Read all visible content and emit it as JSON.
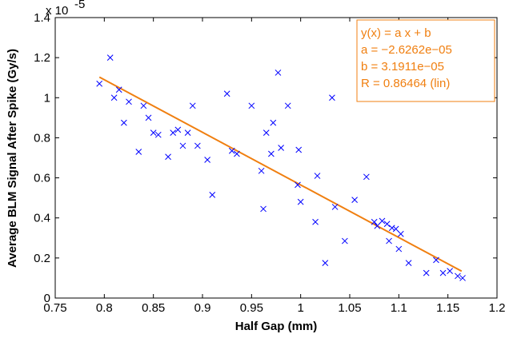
{
  "chart_data": {
    "type": "scatter",
    "xlabel": "Half Gap (mm)",
    "ylabel": "Average BLM Signal After Spike (Gy/s)",
    "y_exponent_label": "x 10",
    "y_exponent_power": "-5",
    "xlim": [
      0.75,
      1.2
    ],
    "ylim": [
      0,
      1.4
    ],
    "x_ticks": [
      0.75,
      0.8,
      0.85,
      0.9,
      0.95,
      1,
      1.05,
      1.1,
      1.15,
      1.2
    ],
    "x_tick_labels": [
      "0.75",
      "0.8",
      "0.85",
      "0.9",
      "0.95",
      "1",
      "1.05",
      "1.1",
      "1.15",
      "1.2"
    ],
    "y_ticks": [
      0,
      0.2,
      0.4,
      0.6,
      0.8,
      1,
      1.2,
      1.4
    ],
    "y_tick_labels": [
      "0",
      "0.2",
      "0.4",
      "0.6",
      "0.8",
      "1",
      "1.2",
      "1.4"
    ],
    "grid": false,
    "colors": {
      "points": "#0000ff",
      "fit_line": "#f07f10",
      "fit_box": "#f07f10"
    },
    "series": [
      {
        "marker": "x",
        "points": [
          [
            0.795,
            1.07
          ],
          [
            0.806,
            1.2
          ],
          [
            0.81,
            1.0
          ],
          [
            0.815,
            1.04
          ],
          [
            0.82,
            0.875
          ],
          [
            0.825,
            0.98
          ],
          [
            0.835,
            0.73
          ],
          [
            0.84,
            0.96
          ],
          [
            0.845,
            0.9
          ],
          [
            0.85,
            0.825
          ],
          [
            0.855,
            0.815
          ],
          [
            0.865,
            0.705
          ],
          [
            0.87,
            0.825
          ],
          [
            0.875,
            0.84
          ],
          [
            0.88,
            0.76
          ],
          [
            0.885,
            0.825
          ],
          [
            0.89,
            0.96
          ],
          [
            0.895,
            0.76
          ],
          [
            0.905,
            0.69
          ],
          [
            0.91,
            0.515
          ],
          [
            0.925,
            1.02
          ],
          [
            0.93,
            0.735
          ],
          [
            0.935,
            0.72
          ],
          [
            0.95,
            0.96
          ],
          [
            0.96,
            0.635
          ],
          [
            0.962,
            0.445
          ],
          [
            0.965,
            0.825
          ],
          [
            0.97,
            0.72
          ],
          [
            0.972,
            0.875
          ],
          [
            0.977,
            1.125
          ],
          [
            0.98,
            0.75
          ],
          [
            0.987,
            0.96
          ],
          [
            0.997,
            0.565
          ],
          [
            0.998,
            0.74
          ],
          [
            1.0,
            0.48
          ],
          [
            1.015,
            0.38
          ],
          [
            1.017,
            0.61
          ],
          [
            1.025,
            0.175
          ],
          [
            1.032,
            1.0
          ],
          [
            1.035,
            0.455
          ],
          [
            1.045,
            0.285
          ],
          [
            1.055,
            0.49
          ],
          [
            1.067,
            0.605
          ],
          [
            1.075,
            0.38
          ],
          [
            1.078,
            0.36
          ],
          [
            1.083,
            0.385
          ],
          [
            1.088,
            0.37
          ],
          [
            1.09,
            0.285
          ],
          [
            1.093,
            0.35
          ],
          [
            1.097,
            0.345
          ],
          [
            1.1,
            0.245
          ],
          [
            1.102,
            0.32
          ],
          [
            1.11,
            0.175
          ],
          [
            1.128,
            0.125
          ],
          [
            1.138,
            0.19
          ],
          [
            1.145,
            0.125
          ],
          [
            1.152,
            0.135
          ],
          [
            1.16,
            0.11
          ],
          [
            1.165,
            0.1
          ]
        ]
      }
    ],
    "fit": {
      "x": [
        0.795,
        1.164
      ],
      "y": [
        1.103,
        0.134
      ],
      "legend_lines": [
        "y(x) = a x + b",
        "a = −2.6262e−05",
        "b = 3.1911e−05",
        "R = 0.86464  (lin)"
      ],
      "legend_placement": "top-right"
    }
  }
}
